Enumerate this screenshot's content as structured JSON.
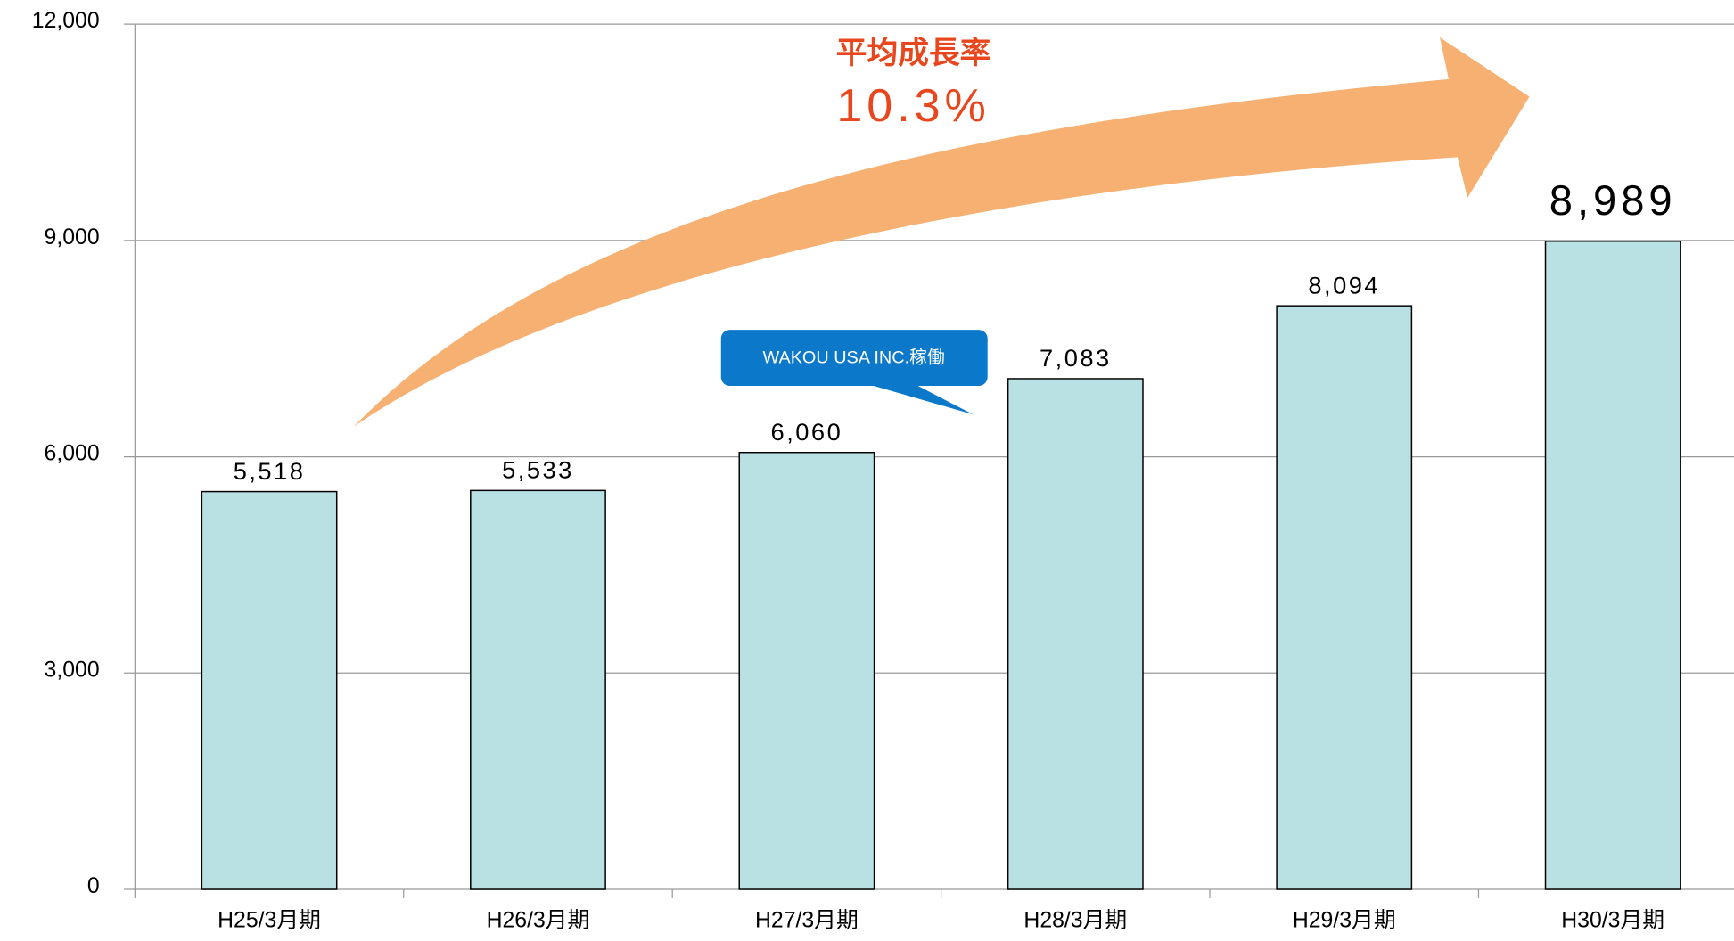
{
  "chart_data": {
    "type": "bar",
    "categories": [
      "H25/3月期",
      "H26/3月期",
      "H27/3月期",
      "H28/3月期",
      "H29/3月期",
      "H30/3月期"
    ],
    "values": [
      5518,
      5533,
      6060,
      7083,
      8094,
      8989
    ],
    "value_labels": [
      "5,518",
      "5,533",
      "6,060",
      "7,083",
      "8,094",
      "8,989"
    ],
    "color": "#b9e0e3",
    "ylim": [
      0,
      12000
    ],
    "yticks": [
      0,
      {
        "value": 3000,
        "label": "3,000"
      },
      {
        "value": 6000,
        "label": "6,000"
      },
      {
        "value": 9000,
        "label": "9,000"
      },
      {
        "value": 12000,
        "label": "12,000"
      }
    ],
    "grid": true,
    "annotations": [
      "平均成長率",
      "10.3%",
      "WAKOU USA INC.稼働"
    ]
  }
}
